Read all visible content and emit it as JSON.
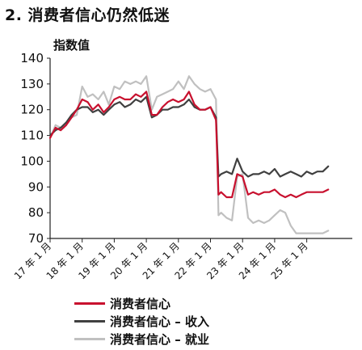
{
  "title": "2. 消费者信心仍然低迷",
  "chart_data": {
    "type": "line",
    "ylabel": "指数值",
    "xlabel": "",
    "ylim": [
      70,
      140
    ],
    "yticks": [
      70,
      80,
      90,
      100,
      110,
      120,
      130,
      140
    ],
    "xlim": [
      2017.0,
      2026.42
    ],
    "xticks": [
      {
        "x": 2017.0,
        "label": "17 年 1 月"
      },
      {
        "x": 2018.0,
        "label": "18 年 1 月"
      },
      {
        "x": 2019.0,
        "label": "19 年 1 月"
      },
      {
        "x": 2020.0,
        "label": "20 年 1 月"
      },
      {
        "x": 2021.0,
        "label": "21 年 1 月"
      },
      {
        "x": 2022.0,
        "label": "22 年 1 月"
      },
      {
        "x": 2023.0,
        "label": "23 年 1 月"
      },
      {
        "x": 2024.0,
        "label": "24 年 1 月"
      },
      {
        "x": 2025.0,
        "label": "25 年 1 月"
      }
    ],
    "grid": false,
    "legend_position": "bottom",
    "series": [
      {
        "name": "消费者信心 - 就业",
        "color": "#c0c0c0",
        "x": [
          2017.0,
          2017.17,
          2017.33,
          2017.5,
          2017.67,
          2017.83,
          2018.0,
          2018.17,
          2018.33,
          2018.5,
          2018.67,
          2018.83,
          2019.0,
          2019.17,
          2019.33,
          2019.5,
          2019.67,
          2019.83,
          2020.0,
          2020.17,
          2020.33,
          2020.5,
          2020.67,
          2020.83,
          2021.0,
          2021.17,
          2021.33,
          2021.5,
          2021.67,
          2021.83,
          2022.0,
          2022.17,
          2022.25,
          2022.33,
          2022.5,
          2022.67,
          2022.83,
          2023.0,
          2023.17,
          2023.33,
          2023.5,
          2023.67,
          2023.83,
          2024.0,
          2024.17,
          2024.33,
          2024.5,
          2024.67,
          2024.83,
          2025.0,
          2025.17,
          2025.33,
          2025.5,
          2025.67
        ],
        "values": [
          109,
          114,
          113,
          114,
          117,
          118,
          129,
          125,
          126,
          124,
          127,
          122,
          129,
          128,
          131,
          130,
          131,
          130,
          133,
          120,
          125,
          126,
          127,
          128,
          131,
          128,
          133,
          130,
          128,
          127,
          128,
          124,
          79,
          80,
          78,
          77,
          94,
          95,
          78,
          76,
          77,
          76,
          77,
          79,
          81,
          80,
          75,
          72,
          72,
          72,
          72,
          72,
          72,
          73
        ]
      },
      {
        "name": "消费者信心 - 收入",
        "color": "#404040",
        "x": [
          2017.0,
          2017.17,
          2017.33,
          2017.5,
          2017.67,
          2017.83,
          2018.0,
          2018.17,
          2018.33,
          2018.5,
          2018.67,
          2018.83,
          2019.0,
          2019.17,
          2019.33,
          2019.5,
          2019.67,
          2019.83,
          2020.0,
          2020.17,
          2020.33,
          2020.5,
          2020.67,
          2020.83,
          2021.0,
          2021.17,
          2021.33,
          2021.5,
          2021.67,
          2021.83,
          2022.0,
          2022.17,
          2022.25,
          2022.33,
          2022.5,
          2022.67,
          2022.83,
          2023.0,
          2023.17,
          2023.33,
          2023.5,
          2023.67,
          2023.83,
          2024.0,
          2024.17,
          2024.33,
          2024.5,
          2024.67,
          2024.83,
          2025.0,
          2025.17,
          2025.33,
          2025.5,
          2025.67
        ],
        "values": [
          110,
          112,
          113,
          115,
          118,
          120,
          121,
          121,
          119,
          120,
          118,
          120,
          122,
          123,
          121,
          122,
          124,
          123,
          125,
          117,
          118,
          120,
          120,
          121,
          121,
          122,
          124,
          121,
          120,
          120,
          121,
          117,
          94,
          95,
          96,
          95,
          101,
          96,
          94,
          95,
          95,
          96,
          95,
          97,
          94,
          95,
          96,
          95,
          94,
          96,
          95,
          96,
          96,
          98
        ]
      },
      {
        "name": "消费者信心",
        "color": "#c8102e",
        "x": [
          2017.0,
          2017.17,
          2017.33,
          2017.5,
          2017.67,
          2017.83,
          2018.0,
          2018.17,
          2018.33,
          2018.5,
          2018.67,
          2018.83,
          2019.0,
          2019.17,
          2019.33,
          2019.5,
          2019.67,
          2019.83,
          2020.0,
          2020.17,
          2020.33,
          2020.5,
          2020.67,
          2020.83,
          2021.0,
          2021.17,
          2021.33,
          2021.5,
          2021.67,
          2021.83,
          2022.0,
          2022.17,
          2022.25,
          2022.33,
          2022.5,
          2022.67,
          2022.83,
          2023.0,
          2023.17,
          2023.33,
          2023.5,
          2023.67,
          2023.83,
          2024.0,
          2024.17,
          2024.33,
          2024.5,
          2024.67,
          2024.83,
          2025.0,
          2025.17,
          2025.33,
          2025.5,
          2025.67
        ],
        "values": [
          109,
          113,
          112,
          114,
          117,
          120,
          124,
          123,
          120,
          122,
          119,
          121,
          124,
          125,
          124,
          124,
          126,
          125,
          127,
          118,
          118,
          121,
          123,
          124,
          123,
          124,
          127,
          122,
          120,
          120,
          121,
          116,
          87,
          88,
          86,
          86,
          95,
          94,
          87,
          88,
          87,
          88,
          88,
          89,
          87,
          86,
          87,
          86,
          87,
          88,
          88,
          88,
          88,
          89
        ]
      }
    ],
    "legend": [
      {
        "label": "消费者信心",
        "color": "#c8102e"
      },
      {
        "label": "消费者信心 – 收入",
        "color": "#404040"
      },
      {
        "label": "消费者信心 – 就业",
        "color": "#c0c0c0"
      }
    ]
  }
}
